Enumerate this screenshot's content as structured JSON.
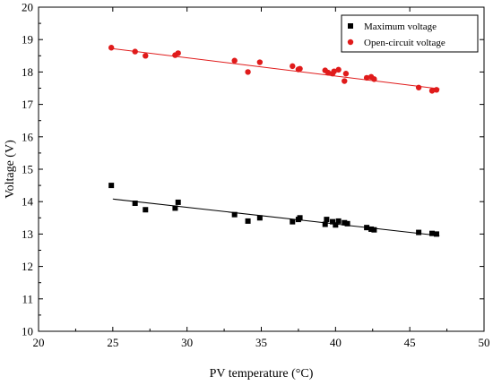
{
  "chart_data": {
    "type": "scatter",
    "xlabel": "PV temperature (°C)",
    "ylabel": "Voltage (V)",
    "xlim": [
      20,
      50
    ],
    "ylim": [
      10,
      20
    ],
    "xticks": [
      "20",
      "25",
      "30",
      "35",
      "40",
      "45",
      "50"
    ],
    "yticks": [
      "10",
      "11",
      "12",
      "13",
      "14",
      "15",
      "16",
      "17",
      "18",
      "19",
      "20"
    ],
    "legend_position": "top-right",
    "series": [
      {
        "name": "Maximum voltage",
        "marker": "square",
        "color": "#000000",
        "points": [
          [
            24.9,
            14.5
          ],
          [
            26.5,
            13.95
          ],
          [
            27.2,
            13.75
          ],
          [
            29.2,
            13.8
          ],
          [
            29.4,
            13.98
          ],
          [
            33.2,
            13.6
          ],
          [
            34.1,
            13.4
          ],
          [
            34.9,
            13.5
          ],
          [
            37.1,
            13.38
          ],
          [
            37.5,
            13.45
          ],
          [
            37.6,
            13.5
          ],
          [
            39.3,
            13.3
          ],
          [
            39.4,
            13.45
          ],
          [
            39.8,
            13.38
          ],
          [
            40.0,
            13.28
          ],
          [
            40.2,
            13.4
          ],
          [
            40.6,
            13.35
          ],
          [
            40.8,
            13.32
          ],
          [
            42.1,
            13.2
          ],
          [
            42.4,
            13.15
          ],
          [
            42.6,
            13.13
          ],
          [
            45.6,
            13.05
          ],
          [
            46.5,
            13.02
          ],
          [
            46.8,
            13.0
          ]
        ],
        "trend": [
          [
            25,
            14.08
          ],
          [
            47,
            12.95
          ]
        ]
      },
      {
        "name": "Open-circuit voltage",
        "marker": "circle",
        "color": "#e01b1b",
        "points": [
          [
            24.9,
            18.75
          ],
          [
            26.5,
            18.63
          ],
          [
            27.2,
            18.5
          ],
          [
            29.2,
            18.52
          ],
          [
            29.4,
            18.58
          ],
          [
            33.2,
            18.35
          ],
          [
            34.1,
            18.0
          ],
          [
            34.9,
            18.3
          ],
          [
            37.1,
            18.18
          ],
          [
            37.5,
            18.08
          ],
          [
            37.6,
            18.1
          ],
          [
            39.3,
            18.05
          ],
          [
            39.5,
            17.98
          ],
          [
            39.8,
            17.95
          ],
          [
            39.9,
            18.02
          ],
          [
            40.2,
            18.07
          ],
          [
            40.6,
            17.72
          ],
          [
            40.7,
            17.95
          ],
          [
            42.1,
            17.82
          ],
          [
            42.4,
            17.85
          ],
          [
            42.6,
            17.78
          ],
          [
            45.6,
            17.52
          ],
          [
            46.5,
            17.42
          ],
          [
            46.8,
            17.45
          ]
        ],
        "trend": [
          [
            25,
            18.72
          ],
          [
            47,
            17.48
          ]
        ]
      }
    ]
  }
}
